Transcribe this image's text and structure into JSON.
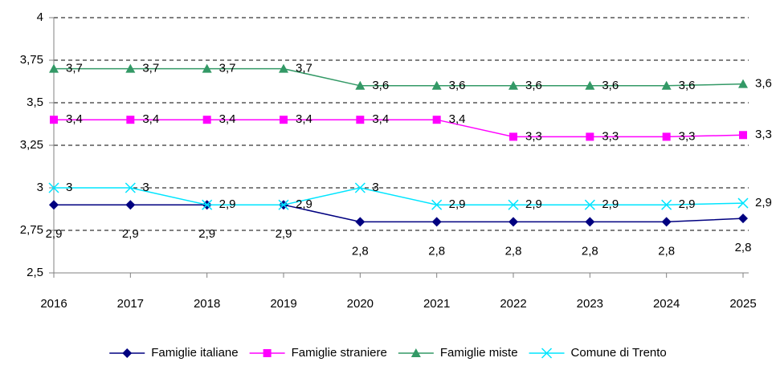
{
  "chart_data": {
    "type": "line",
    "categories": [
      "2016",
      "2017",
      "2018",
      "2019",
      "2020",
      "2021",
      "2022",
      "2023",
      "2024",
      "2025"
    ],
    "ylim": [
      2.5,
      4
    ],
    "yticks": [
      {
        "value": 2.5,
        "label": "2,5"
      },
      {
        "value": 2.75,
        "label": "2,75"
      },
      3,
      {
        "value": 3.25,
        "label": "3,25"
      },
      {
        "value": 3.5,
        "label": "3,5"
      },
      {
        "value": 3.75,
        "label": "3,75"
      },
      4
    ],
    "grid": true,
    "legend": "bottom",
    "series": [
      {
        "name": "Famiglie italiane",
        "color": "#000080",
        "marker": "diamond",
        "label_position": "below",
        "values": [
          2.9,
          2.9,
          2.9,
          2.9,
          2.8,
          2.8,
          2.8,
          2.8,
          2.8,
          2.82
        ],
        "value_labels": [
          "2,9",
          "2,9",
          "2,9",
          "2,9",
          "2,8",
          "2,8",
          "2,8",
          "2,8",
          "2,8",
          "2,8"
        ]
      },
      {
        "name": "Famiglie straniere",
        "color": "#ff00ff",
        "marker": "square",
        "label_position": "right",
        "values": [
          3.4,
          3.4,
          3.4,
          3.4,
          3.4,
          3.4,
          3.3,
          3.3,
          3.3,
          3.31
        ],
        "value_labels": [
          "3,4",
          "3,4",
          "3,4",
          "3,4",
          "3,4",
          "3,4",
          "3,3",
          "3,3",
          "3,3",
          "3,3"
        ]
      },
      {
        "name": "Famiglie miste",
        "color": "#339966",
        "marker": "triangle",
        "label_position": "right",
        "values": [
          3.7,
          3.7,
          3.7,
          3.7,
          3.6,
          3.6,
          3.6,
          3.6,
          3.6,
          3.61
        ],
        "value_labels": [
          "3,7",
          "3,7",
          "3,7",
          "3,7",
          "3,6",
          "3,6",
          "3,6",
          "3,6",
          "3,6",
          "3,6"
        ]
      },
      {
        "name": "Comune di Trento",
        "color": "#00e5ff",
        "marker": "x",
        "label_position": "right",
        "values": [
          3,
          3,
          2.9,
          2.9,
          3,
          2.9,
          2.9,
          2.9,
          2.9,
          2.91
        ],
        "value_labels": [
          "3",
          "3",
          "2,9",
          "2,9",
          "3",
          "2,9",
          "2,9",
          "2,9",
          "2,9",
          "2,9"
        ]
      }
    ]
  }
}
